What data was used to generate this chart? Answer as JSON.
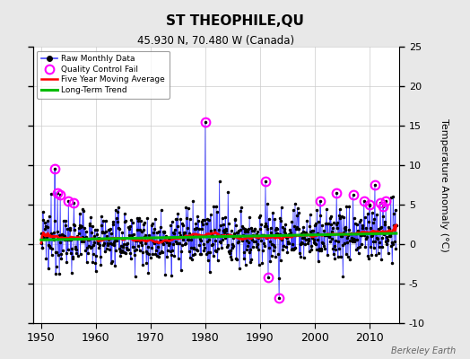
{
  "title": "ST THEOPHILE,QU",
  "subtitle": "45.930 N, 70.480 W (Canada)",
  "ylabel": "Temperature Anomaly (°C)",
  "watermark": "Berkeley Earth",
  "xlim": [
    1948.5,
    2015.5
  ],
  "ylim": [
    -10,
    25
  ],
  "yticks_right": [
    -10,
    -5,
    0,
    5,
    10,
    15,
    20,
    25
  ],
  "yticks_left": [
    -10,
    -5,
    0,
    5,
    10,
    15,
    20,
    25
  ],
  "xticks": [
    1950,
    1960,
    1970,
    1980,
    1990,
    2000,
    2010
  ],
  "background_color": "#e8e8e8",
  "plot_bg_color": "#ffffff",
  "raw_line_color": "#4444ff",
  "raw_marker_color": "#000000",
  "qc_fail_color": "#ff00ff",
  "moving_avg_color": "#ff0000",
  "trend_color": "#00bb00",
  "seed": 12345
}
